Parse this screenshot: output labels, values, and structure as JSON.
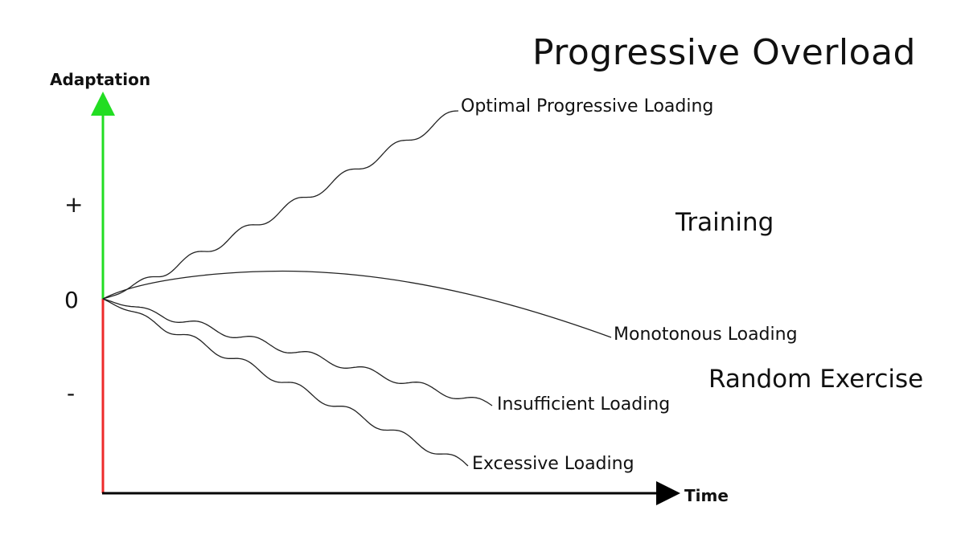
{
  "title": "Progressive Overload",
  "axes": {
    "y_label": "Adaptation",
    "x_label": "Time",
    "y_positive_color": "#22dd22",
    "y_negative_color": "#ee2a2a",
    "x_axis_color": "#000000",
    "ticks": {
      "plus": "+",
      "zero": "0",
      "minus": "-"
    }
  },
  "regions": {
    "upper": "Training",
    "lower": "Random Exercise"
  },
  "curves": [
    {
      "id": "optimal",
      "label": "Optimal Progressive Loading",
      "shape": "wavy-rising"
    },
    {
      "id": "monotonous",
      "label": "Monotonous Loading",
      "shape": "arch-then-decline"
    },
    {
      "id": "insufficient",
      "label": "Insufficient Loading",
      "shape": "wavy-declining"
    },
    {
      "id": "excessive",
      "label": "Excessive Loading",
      "shape": "wavy-steep-declining"
    }
  ],
  "colors": {
    "curve": "#222222",
    "text": "#111111"
  }
}
